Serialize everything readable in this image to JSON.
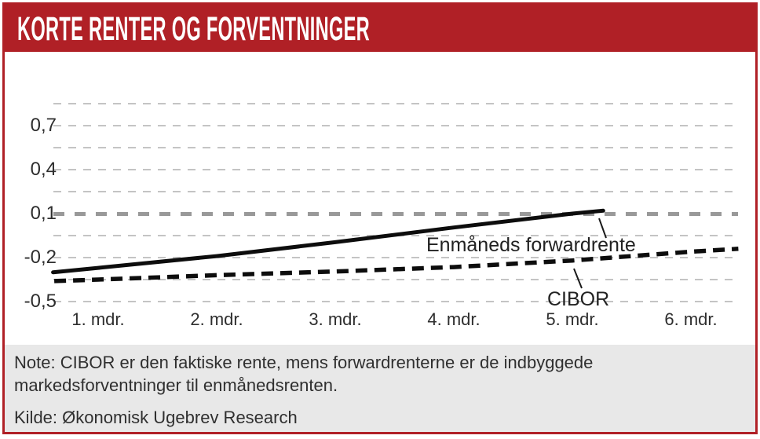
{
  "title": "KORTE RENTER OG FORVENTNINGER",
  "note": {
    "line1": "Note: CIBOR er den faktiske rente, mens forwardrenterne er de indbyggede",
    "line2": "markedsforventninger til enmånedsrenten."
  },
  "source": "Kilde: Økonomisk Ugebrev Research",
  "colors": {
    "accent_red": "#b02026",
    "note_bg": "#e8e8e8",
    "grid": "#c4c4c4",
    "grid_emphasis": "#999999",
    "line": "#0d0d0d"
  },
  "chart_data": {
    "type": "line",
    "title": "KORTE RENTER OG FORVENTNINGER",
    "xlabel": "",
    "ylabel": "",
    "x_tick_labels": [
      "1. mdr.",
      "2. mdr.",
      "3. mdr.",
      "4. mdr.",
      "5. mdr.",
      "6. mdr."
    ],
    "y_ticks": [
      {
        "value": 0.7,
        "label": "0,7"
      },
      {
        "value": 0.4,
        "label": "0,4"
      },
      {
        "value": 0.1,
        "label": "0,1"
      },
      {
        "value": -0.2,
        "label": "-0,2"
      },
      {
        "value": -0.5,
        "label": "-0,5"
      }
    ],
    "gridline_values": [
      0.85,
      0.7,
      0.55,
      0.4,
      0.25,
      0.1,
      -0.05,
      -0.2,
      -0.35,
      -0.5
    ],
    "emphasized_gridline_value": 0.1,
    "ylim": [
      -0.5,
      0.85
    ],
    "xlim": [
      0.6,
      6.4
    ],
    "grid": "horizontal-dashed",
    "legend_position": "inline-annotations",
    "series": [
      {
        "name": "Enmåneds forwardrente",
        "style": "solid",
        "points": [
          [
            0.62,
            -0.3
          ],
          [
            1,
            -0.27
          ],
          [
            2,
            -0.19
          ],
          [
            3,
            -0.095
          ],
          [
            4,
            0.005
          ],
          [
            5,
            0.1
          ],
          [
            5.26,
            0.12
          ]
        ]
      },
      {
        "name": "CIBOR",
        "style": "dashed",
        "points": [
          [
            0.63,
            -0.36
          ],
          [
            1,
            -0.35
          ],
          [
            2,
            -0.32
          ],
          [
            3,
            -0.295
          ],
          [
            4,
            -0.265
          ],
          [
            5,
            -0.22
          ],
          [
            6,
            -0.16
          ],
          [
            6.4,
            -0.14
          ]
        ]
      }
    ]
  }
}
